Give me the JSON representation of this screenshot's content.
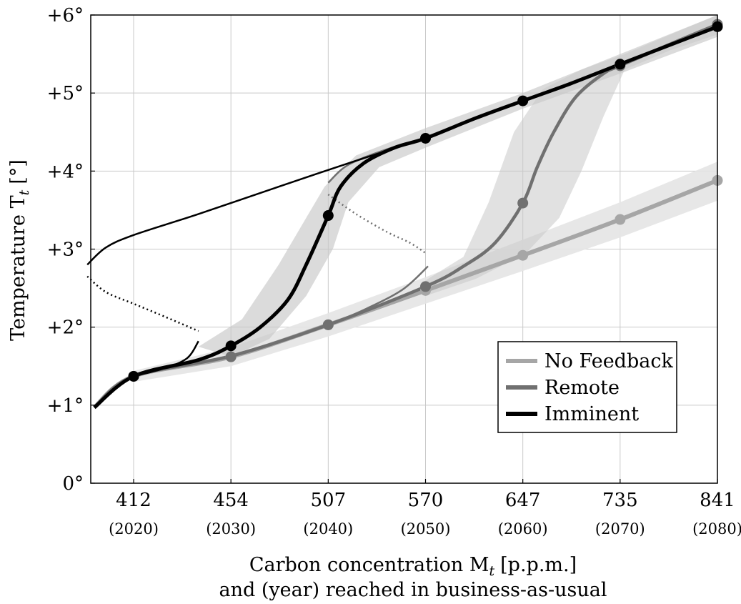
{
  "chart_data": {
    "type": "line",
    "xlabel_line1": "Carbon concentration M",
    "xlabel_sub": "t",
    "xlabel_unit": "[p.p.m.]",
    "xlabel_line2": "and (year) reached in business-as-usual",
    "ylabel_main": "Temperature T",
    "ylabel_sub": "t",
    "ylabel_unit": "[°]",
    "x_ticks": [
      {
        "value": 412,
        "label": "412",
        "year": "(2020)"
      },
      {
        "value": 454,
        "label": "454",
        "year": "(2030)"
      },
      {
        "value": 507,
        "label": "507",
        "year": "(2040)"
      },
      {
        "value": 570,
        "label": "570",
        "year": "(2050)"
      },
      {
        "value": 647,
        "label": "647",
        "year": "(2060)"
      },
      {
        "value": 735,
        "label": "735",
        "year": "(2070)"
      },
      {
        "value": 841,
        "label": "841",
        "year": "(2080)"
      }
    ],
    "y_ticks": [
      {
        "value": 0,
        "label": "0°"
      },
      {
        "value": 1,
        "label": "+1°"
      },
      {
        "value": 2,
        "label": "+2°"
      },
      {
        "value": 3,
        "label": "+3°"
      },
      {
        "value": 4,
        "label": "+4°"
      },
      {
        "value": 5,
        "label": "+5°"
      },
      {
        "value": 6,
        "label": "+6°"
      }
    ],
    "ylim": [
      0,
      6
    ],
    "grid": true,
    "legend_position": "bottom-right",
    "colors": {
      "no_feedback": "#a6a6a6",
      "remote": "#707070",
      "imminent": "#000000",
      "band": "#c8c8c8"
    },
    "series": [
      {
        "name": "No Feedback",
        "x": [
          412,
          454,
          507,
          570,
          647,
          735,
          841
        ],
        "y": [
          1.37,
          1.62,
          2.03,
          2.47,
          2.92,
          3.38,
          3.88
        ],
        "band_lower": [
          1.3,
          1.5,
          1.88,
          2.3,
          2.72,
          3.15,
          3.62
        ],
        "band_upper": [
          1.44,
          1.74,
          2.18,
          2.64,
          3.12,
          3.6,
          4.12
        ]
      },
      {
        "name": "Remote",
        "x": [
          412,
          454,
          507,
          570,
          647,
          735,
          841
        ],
        "y": [
          1.37,
          1.62,
          2.03,
          2.52,
          3.59,
          5.35,
          5.88
        ],
        "curve": [
          [
            395,
            0.97
          ],
          [
            412,
            1.37
          ],
          [
            454,
            1.63
          ],
          [
            507,
            2.03
          ],
          [
            570,
            2.52
          ],
          [
            600,
            2.78
          ],
          [
            625,
            3.08
          ],
          [
            647,
            3.59
          ],
          [
            660,
            4.05
          ],
          [
            675,
            4.5
          ],
          [
            695,
            4.95
          ],
          [
            720,
            5.25
          ],
          [
            735,
            5.35
          ],
          [
            790,
            5.63
          ],
          [
            841,
            5.88
          ]
        ],
        "band_lower_curve": [
          [
            570,
            2.4
          ],
          [
            610,
            2.62
          ],
          [
            650,
            2.95
          ],
          [
            680,
            3.4
          ],
          [
            700,
            4.0
          ],
          [
            720,
            4.7
          ],
          [
            740,
            5.3
          ],
          [
            790,
            5.55
          ],
          [
            841,
            5.75
          ]
        ],
        "band_upper_curve": [
          [
            570,
            2.6
          ],
          [
            600,
            2.9
          ],
          [
            620,
            3.6
          ],
          [
            640,
            4.5
          ],
          [
            665,
            5.05
          ],
          [
            700,
            5.3
          ],
          [
            740,
            5.5
          ],
          [
            790,
            5.75
          ],
          [
            841,
            6.0
          ]
        ],
        "bifurcation_upper": [
          [
            507,
            3.85
          ],
          [
            520,
            4.08
          ],
          [
            545,
            4.28
          ],
          [
            570,
            4.42
          ]
        ],
        "bifurcation_unstable": [
          [
            507,
            3.7
          ],
          [
            525,
            3.45
          ],
          [
            545,
            3.22
          ],
          [
            560,
            3.08
          ],
          [
            570,
            2.95
          ]
        ],
        "bifurcation_lower": [
          [
            507,
            2.03
          ],
          [
            530,
            2.22
          ],
          [
            555,
            2.48
          ],
          [
            572,
            2.78
          ]
        ]
      },
      {
        "name": "Imminent",
        "x": [
          412,
          454,
          507,
          570,
          647,
          735,
          841
        ],
        "y": [
          1.37,
          1.76,
          3.43,
          4.42,
          4.9,
          5.37,
          5.85
        ],
        "curve": [
          [
            395,
            0.97
          ],
          [
            412,
            1.37
          ],
          [
            440,
            1.58
          ],
          [
            454,
            1.76
          ],
          [
            470,
            2.0
          ],
          [
            485,
            2.35
          ],
          [
            495,
            2.8
          ],
          [
            507,
            3.43
          ],
          [
            515,
            3.8
          ],
          [
            530,
            4.1
          ],
          [
            550,
            4.3
          ],
          [
            570,
            4.42
          ],
          [
            610,
            4.68
          ],
          [
            647,
            4.9
          ],
          [
            690,
            5.12
          ],
          [
            735,
            5.37
          ],
          [
            790,
            5.62
          ],
          [
            841,
            5.85
          ]
        ],
        "band_lower_curve": [
          [
            454,
            1.62
          ],
          [
            475,
            1.85
          ],
          [
            495,
            2.4
          ],
          [
            510,
            3.0
          ],
          [
            520,
            3.6
          ],
          [
            540,
            4.05
          ],
          [
            570,
            4.3
          ],
          [
            647,
            4.8
          ],
          [
            735,
            5.25
          ],
          [
            841,
            5.72
          ]
        ],
        "band_upper_curve": [
          [
            440,
            1.75
          ],
          [
            460,
            2.1
          ],
          [
            480,
            2.8
          ],
          [
            495,
            3.4
          ],
          [
            505,
            3.8
          ],
          [
            525,
            4.2
          ],
          [
            570,
            4.55
          ],
          [
            647,
            5.0
          ],
          [
            735,
            5.5
          ],
          [
            841,
            6.0
          ]
        ],
        "bifurcation_upper": [
          [
            392,
            2.8
          ],
          [
            400,
            3.02
          ],
          [
            412,
            3.18
          ],
          [
            440,
            3.45
          ],
          [
            480,
            3.8
          ],
          [
            520,
            4.1
          ],
          [
            570,
            4.42
          ]
        ],
        "bifurcation_unstable": [
          [
            392,
            2.65
          ],
          [
            400,
            2.45
          ],
          [
            412,
            2.3
          ],
          [
            425,
            2.14
          ],
          [
            440,
            1.95
          ]
        ],
        "bifurcation_lower": [
          [
            412,
            1.37
          ],
          [
            425,
            1.47
          ],
          [
            435,
            1.6
          ],
          [
            440,
            1.82
          ]
        ]
      }
    ]
  }
}
